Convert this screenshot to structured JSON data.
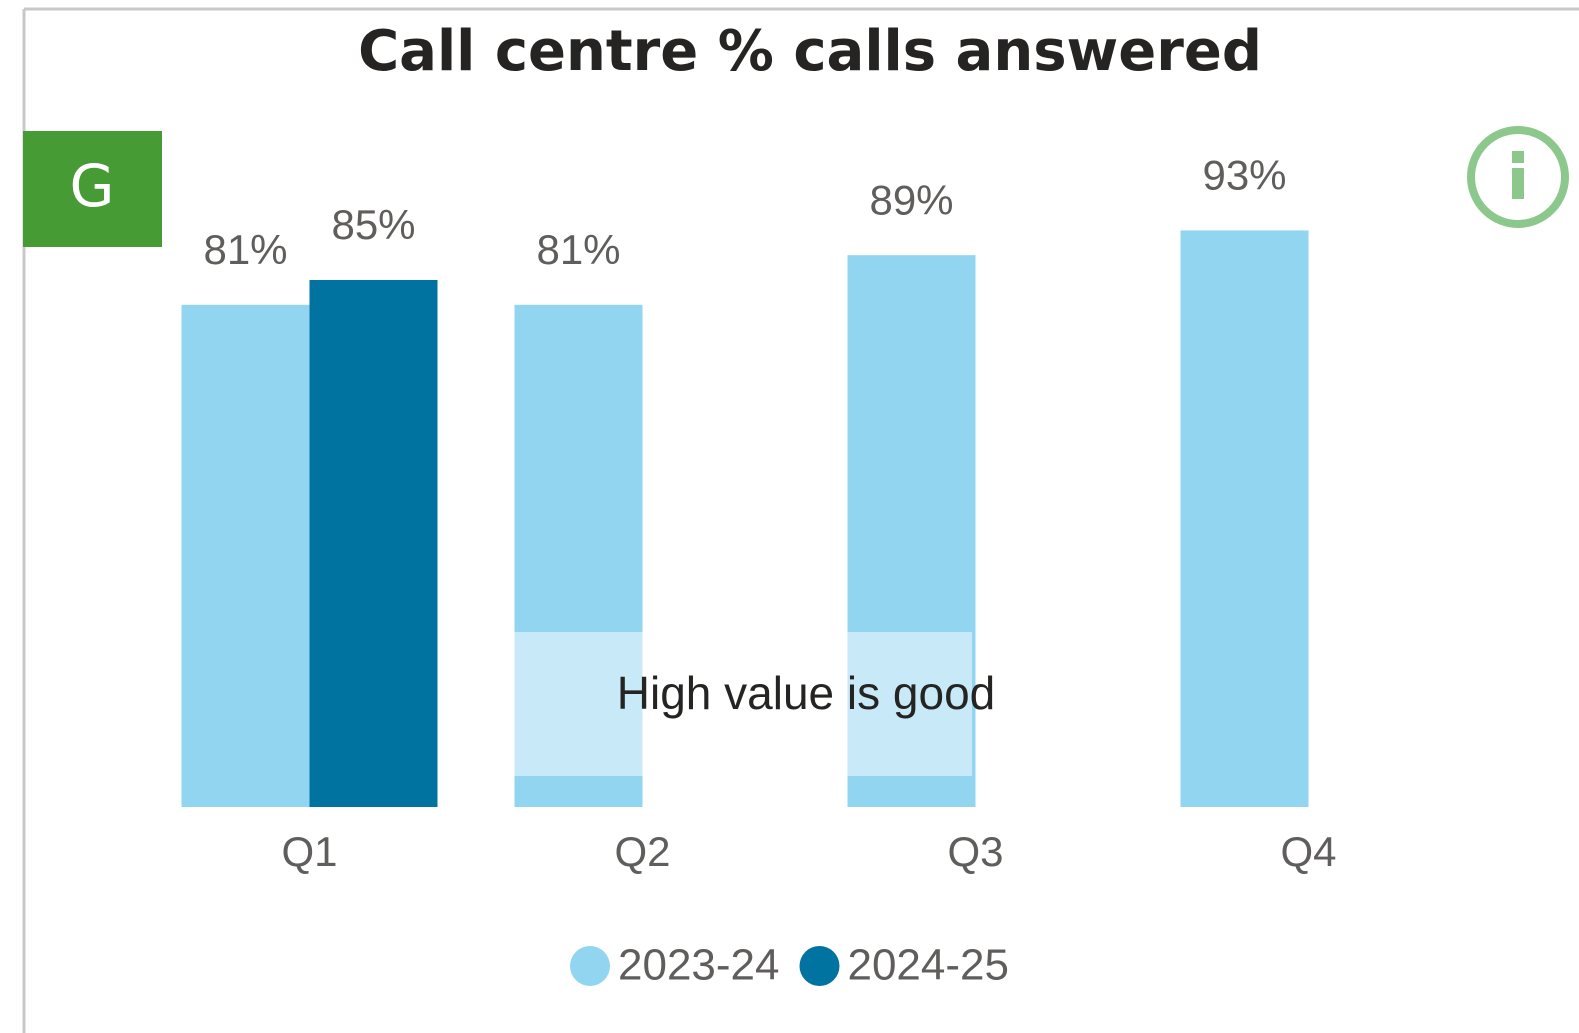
{
  "chart_data": {
    "type": "bar",
    "title": "Call centre % calls answered",
    "badge": "G",
    "note": "High value is good",
    "categories": [
      "Q1",
      "Q2",
      "Q3",
      "Q4"
    ],
    "series": [
      {
        "name": "2023-24",
        "color": "#91d5f0",
        "values": [
          81,
          81,
          89,
          93
        ],
        "value_labels": [
          "81%",
          "81%",
          "89%",
          "93%"
        ]
      },
      {
        "name": "2024-25",
        "color": "#0073a1",
        "values": [
          85,
          null,
          null,
          null
        ],
        "value_labels": [
          "85%",
          null,
          null,
          null
        ]
      }
    ],
    "ylim": [
      0,
      100
    ],
    "grid": false
  }
}
